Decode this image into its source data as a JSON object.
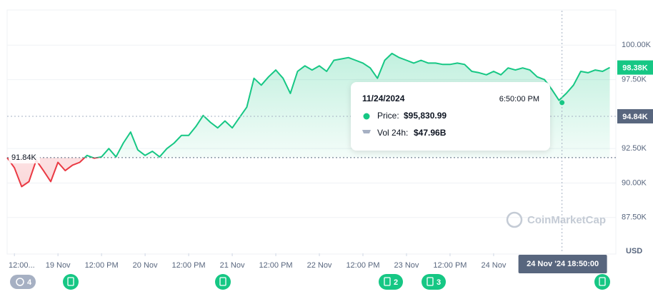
{
  "chart_data": {
    "type": "line",
    "x": [
      "2024-11-18T10:00",
      "2024-11-18T12:00",
      "2024-11-18T14:00",
      "2024-11-18T16:00",
      "2024-11-18T18:00",
      "2024-11-18T20:00",
      "2024-11-18T22:00",
      "2024-11-19T00:00",
      "2024-11-19T02:00",
      "2024-11-19T04:00",
      "2024-11-19T06:00",
      "2024-11-19T08:00",
      "2024-11-19T10:00",
      "2024-11-19T12:00",
      "2024-11-19T14:00",
      "2024-11-19T16:00",
      "2024-11-19T18:00",
      "2024-11-19T20:00",
      "2024-11-19T22:00",
      "2024-11-20T00:00",
      "2024-11-20T02:00",
      "2024-11-20T04:00",
      "2024-11-20T06:00",
      "2024-11-20T08:00",
      "2024-11-20T10:00",
      "2024-11-20T12:00",
      "2024-11-20T14:00",
      "2024-11-20T16:00",
      "2024-11-20T18:00",
      "2024-11-20T20:00",
      "2024-11-20T22:00",
      "2024-11-21T00:00",
      "2024-11-21T02:00",
      "2024-11-21T04:00",
      "2024-11-21T06:00",
      "2024-11-21T08:00",
      "2024-11-21T10:00",
      "2024-11-21T12:00",
      "2024-11-21T14:00",
      "2024-11-21T16:00",
      "2024-11-21T18:00",
      "2024-11-21T20:00",
      "2024-11-21T22:00",
      "2024-11-22T00:00",
      "2024-11-22T02:00",
      "2024-11-22T04:00",
      "2024-11-22T06:00",
      "2024-11-22T08:00",
      "2024-11-22T10:00",
      "2024-11-22T12:00",
      "2024-11-22T14:00",
      "2024-11-22T16:00",
      "2024-11-22T18:00",
      "2024-11-22T20:00",
      "2024-11-22T22:00",
      "2024-11-23T00:00",
      "2024-11-23T02:00",
      "2024-11-23T04:00",
      "2024-11-23T06:00",
      "2024-11-23T08:00",
      "2024-11-23T10:00",
      "2024-11-23T12:00",
      "2024-11-23T14:00",
      "2024-11-23T16:00",
      "2024-11-23T18:00",
      "2024-11-23T20:00",
      "2024-11-23T22:00",
      "2024-11-24T00:00",
      "2024-11-24T02:00",
      "2024-11-24T04:00",
      "2024-11-24T06:00",
      "2024-11-24T08:00",
      "2024-11-24T10:00",
      "2024-11-24T12:00",
      "2024-11-24T14:00",
      "2024-11-24T16:00",
      "2024-11-24T18:00",
      "2024-11-24T20:00",
      "2024-11-24T22:00",
      "2024-11-25T00:00",
      "2024-11-25T02:00",
      "2024-11-25T04:00",
      "2024-11-25T06:00",
      "2024-11-25T08:00"
    ],
    "values": [
      91840,
      91100,
      89740,
      90100,
      91650,
      90900,
      90100,
      91500,
      90900,
      91300,
      91500,
      92000,
      91800,
      91900,
      92500,
      91900,
      92900,
      93700,
      92400,
      92000,
      92300,
      91900,
      92500,
      92900,
      93450,
      93450,
      94100,
      94900,
      94400,
      94000,
      94500,
      94000,
      94750,
      95500,
      97600,
      97100,
      97700,
      98200,
      97600,
      96500,
      98100,
      98500,
      98200,
      98500,
      98100,
      98900,
      99000,
      99100,
      98900,
      98700,
      98350,
      97600,
      98900,
      99400,
      99100,
      98900,
      98700,
      98900,
      98700,
      98700,
      98600,
      98600,
      98700,
      98600,
      98100,
      98000,
      97850,
      98100,
      97850,
      98350,
      98200,
      98350,
      98200,
      97700,
      97500,
      96800,
      96000,
      96500,
      97100,
      98100,
      98000,
      98200,
      98100,
      98380
    ],
    "color": "#16c784",
    "down_color": "#ea3943",
    "xlim": [
      "2024-11-18T10:00",
      "2024-11-25T09:40"
    ],
    "xticks": [
      {
        "value": "2024-11-18T12:00",
        "label": "12:00..."
      },
      {
        "value": "2024-11-19T00:00",
        "label": "19 Nov"
      },
      {
        "value": "2024-11-19T12:00",
        "label": "12:00 PM"
      },
      {
        "value": "2024-11-20T00:00",
        "label": "20 Nov"
      },
      {
        "value": "2024-11-20T12:00",
        "label": "12:00 PM"
      },
      {
        "value": "2024-11-21T00:00",
        "label": "21 Nov"
      },
      {
        "value": "2024-11-21T12:00",
        "label": "12:00 PM"
      },
      {
        "value": "2024-11-22T00:00",
        "label": "22 Nov"
      },
      {
        "value": "2024-11-22T12:00",
        "label": "12:00 PM"
      },
      {
        "value": "2024-11-23T00:00",
        "label": "23 Nov"
      },
      {
        "value": "2024-11-23T12:00",
        "label": "12:00 PM"
      },
      {
        "value": "2024-11-24T00:00",
        "label": "24 Nov"
      }
    ],
    "ylim": [
      84900,
      102500
    ],
    "yticks": [
      {
        "value": 87500,
        "label": "87.50K"
      },
      {
        "value": 90000,
        "label": "90.00K"
      },
      {
        "value": 92500,
        "label": "92.50K"
      },
      {
        "value": 97500,
        "label": "97.50K"
      },
      {
        "value": 100000,
        "label": "100.00K"
      }
    ],
    "grid": true,
    "y_unit": "USD",
    "reference": {
      "value": 91840,
      "label": "91.84K"
    },
    "current": {
      "value": 98380,
      "label": "98.38K"
    },
    "cursor_y": {
      "value": 94840,
      "label": "94.84K"
    },
    "hover": {
      "x": "2024-11-24T18:50",
      "value": 95830.99,
      "label": "24 Nov '24 18:50:00"
    },
    "tooltip": {
      "date": "11/24/2024",
      "time": "6:50:00 PM",
      "price_label": "Price:",
      "price": "$95,830.99",
      "volume_label": "Vol 24h:",
      "volume": "$47.96B"
    },
    "watermark": "CoinMarketCap",
    "event_badges": [
      "4",
      "2",
      "3"
    ]
  }
}
